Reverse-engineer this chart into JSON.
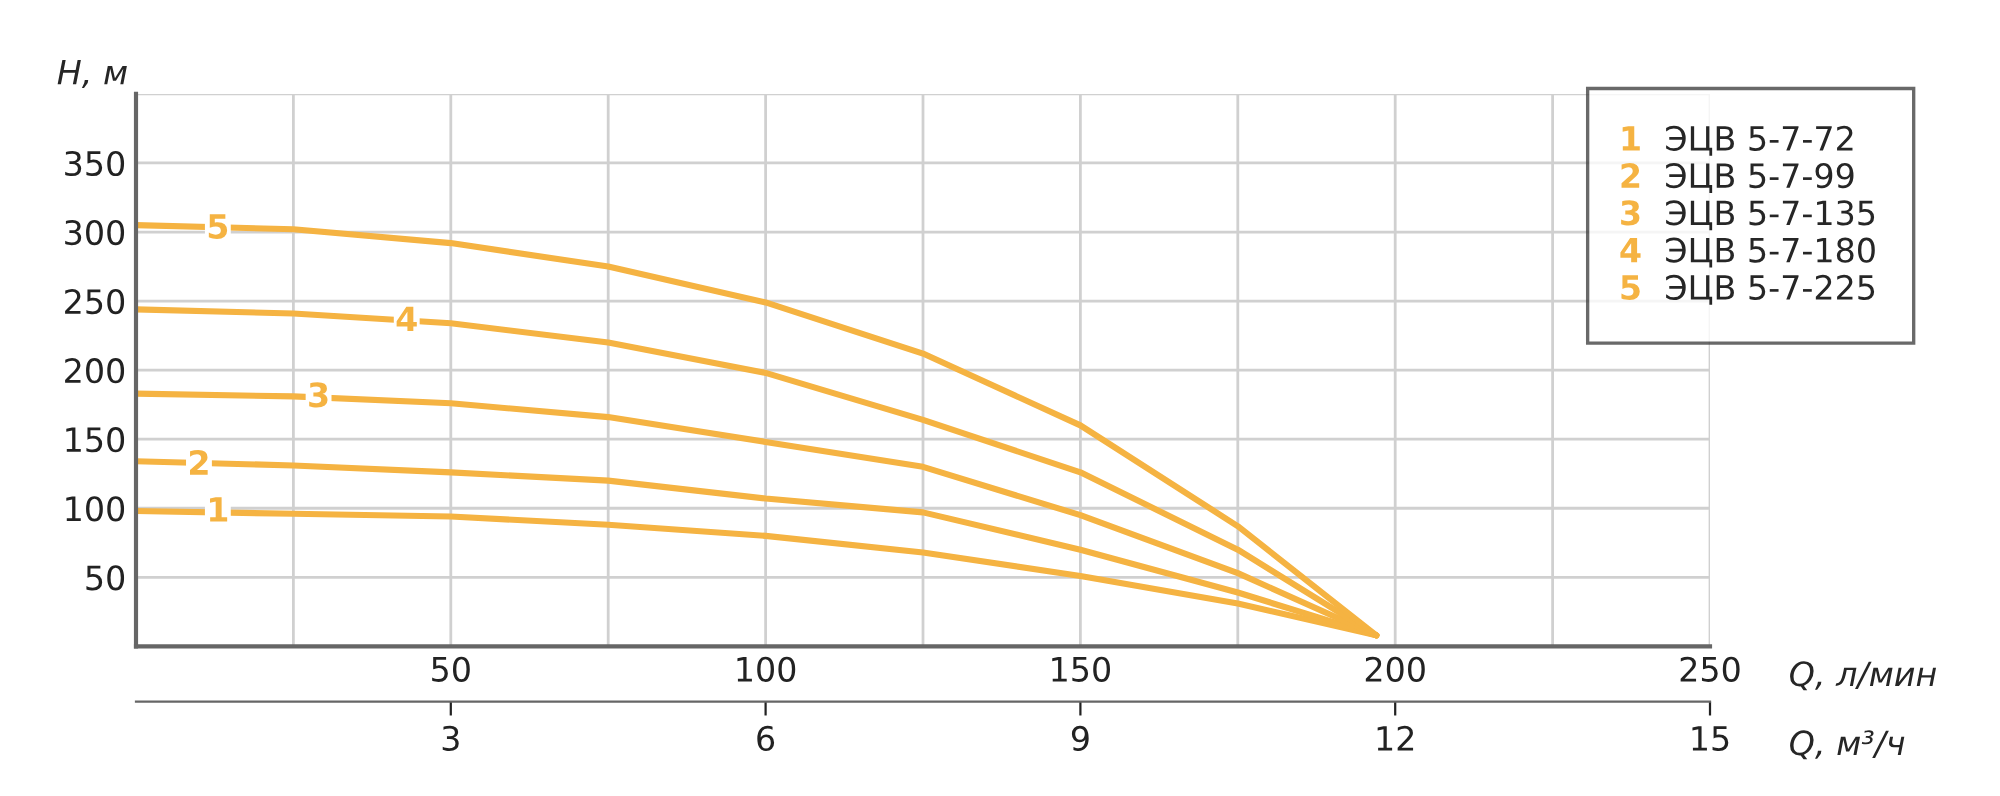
{
  "chart_data": {
    "type": "line",
    "xlabel": "Q, л/мин",
    "ylabel": "H, м",
    "x2label": "Q, м³/ч",
    "x": [
      0,
      25,
      50,
      75,
      100,
      125,
      150,
      175,
      197
    ],
    "series": [
      {
        "name": "ЭЦВ 5-7-72",
        "color": "#f5b342",
        "values": [
          98,
          96,
          94,
          88,
          80,
          68,
          51,
          31,
          8
        ]
      },
      {
        "name": "ЭЦВ 5-7-99",
        "color": "#f5b342",
        "values": [
          134,
          131,
          126,
          120,
          107,
          97,
          70,
          39,
          8
        ]
      },
      {
        "name": "ЭЦВ 5-7-135",
        "color": "#f5b342",
        "values": [
          183,
          181,
          176,
          166,
          148,
          130,
          95,
          53,
          8
        ]
      },
      {
        "name": "ЭЦВ 5-7-180",
        "color": "#f5b342",
        "values": [
          244,
          241,
          234,
          220,
          198,
          164,
          126,
          70,
          8
        ]
      },
      {
        "name": "ЭЦВ 5-7-225",
        "color": "#f5b342",
        "values": [
          305,
          302,
          292,
          275,
          249,
          212,
          160,
          87,
          8
        ]
      }
    ],
    "annotations": [
      {
        "text": "1",
        "x": 13,
        "y": 97
      },
      {
        "text": "2",
        "x": 10,
        "y": 131
      },
      {
        "text": "3",
        "x": 29,
        "y": 180
      },
      {
        "text": "4",
        "x": 43,
        "y": 235
      },
      {
        "text": "5",
        "x": 13,
        "y": 302
      }
    ],
    "xlim": [
      0,
      250
    ],
    "xticks": [
      {
        "value": 25,
        "label": null
      },
      50,
      {
        "value": 75,
        "label": null
      },
      100,
      {
        "value": 125,
        "label": null
      },
      150,
      {
        "value": 175,
        "label": null
      },
      200,
      {
        "value": 225,
        "label": null
      },
      250
    ],
    "x2lim": [
      0,
      15
    ],
    "x2ticks": [
      3,
      6,
      9,
      12,
      15
    ],
    "ylim": [
      0,
      400
    ],
    "yticks": [
      50,
      100,
      150,
      200,
      250,
      300,
      350,
      {
        "value": 400,
        "label": null
      }
    ],
    "grid": true,
    "legend": "top right",
    "marker": "none",
    "line_style": "solid"
  }
}
